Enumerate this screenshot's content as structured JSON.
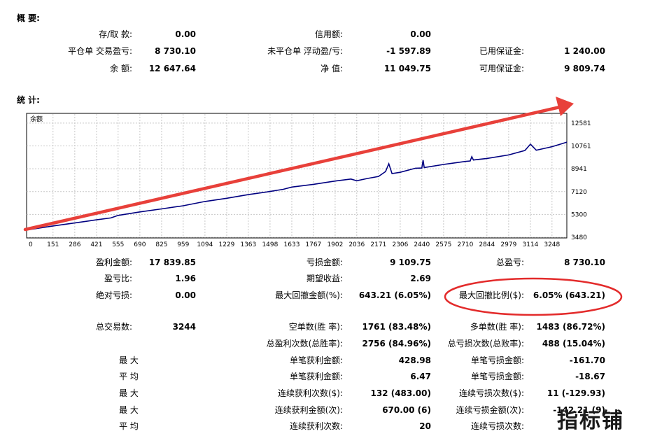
{
  "summary": {
    "title": "概 要:",
    "rows": [
      [
        {
          "label": "存/取 款:",
          "value": "0.00"
        },
        {
          "label": "信用额:",
          "value": "0.00"
        },
        {
          "label": "",
          "value": ""
        }
      ],
      [
        {
          "label": "平仓单 交易盈亏:",
          "value": "8 730.10"
        },
        {
          "label": "未平仓单 浮动盈/亏:",
          "value": "-1 597.89"
        },
        {
          "label": "已用保证金:",
          "value": "1 240.00"
        }
      ],
      [
        {
          "label": "余 额:",
          "value": "12 647.64"
        },
        {
          "label": "净 值:",
          "value": "11 049.75"
        },
        {
          "label": "可用保证金:",
          "value": "9 809.74"
        }
      ]
    ]
  },
  "stats": {
    "title": "统 计:",
    "rows": [
      [
        {
          "label": "盈利金额:",
          "value": "17 839.85"
        },
        {
          "label": "亏损金额:",
          "value": "9 109.75"
        },
        {
          "label": "总盈亏:",
          "value": "8 730.10"
        }
      ],
      [
        {
          "label": "盈亏比:",
          "value": "1.96"
        },
        {
          "label": "期望收益:",
          "value": "2.69"
        },
        {
          "label": "",
          "value": ""
        }
      ],
      [
        {
          "label": "绝对亏损:",
          "value": "0.00"
        },
        {
          "label": "最大回撤金额(%):",
          "value": "643.21 (6.05%)"
        },
        {
          "label": "最大回撤比例($):",
          "value": "6.05% (643.21)"
        }
      ],
      [
        {
          "label": "总交易数:",
          "value": "3244"
        },
        {
          "label": "空单数(胜 率):",
          "value": "1761 (83.48%)"
        },
        {
          "label": "多单数(胜 率):",
          "value": "1483 (86.72%)"
        }
      ],
      [
        {
          "label": "",
          "value": ""
        },
        {
          "label": "总盈利次数(总胜率):",
          "value": "2756 (84.96%)"
        },
        {
          "label": "总亏损次数(总败率):",
          "value": "488 (15.04%)"
        }
      ],
      [
        {
          "label": "最 大",
          "value": ""
        },
        {
          "label": "单笔获利金额:",
          "value": "428.98"
        },
        {
          "label": "单笔亏损金额:",
          "value": "-161.70"
        }
      ],
      [
        {
          "label": "平 均",
          "value": ""
        },
        {
          "label": "单笔获利金额:",
          "value": "6.47"
        },
        {
          "label": "单笔亏损金额:",
          "value": "-18.67"
        }
      ],
      [
        {
          "label": "最 大",
          "value": ""
        },
        {
          "label": "连续获利次数($):",
          "value": "132 (483.00)"
        },
        {
          "label": "连续亏损次数($):",
          "value": "11 (-129.93)"
        }
      ],
      [
        {
          "label": "最 大",
          "value": ""
        },
        {
          "label": "连续获利金额(次):",
          "value": "670.00 (6)"
        },
        {
          "label": "连续亏损金额(次):",
          "value": "-142.21 (9)"
        }
      ],
      [
        {
          "label": "平 均",
          "value": ""
        },
        {
          "label": "连续获利次数:",
          "value": "20"
        },
        {
          "label": "连续亏损次数:",
          "value": ""
        }
      ]
    ]
  },
  "chart_data": {
    "type": "line",
    "legend": "余额",
    "x_ticks": [
      0,
      151,
      286,
      421,
      555,
      690,
      825,
      959,
      1094,
      1229,
      1363,
      1498,
      1633,
      1767,
      1902,
      2036,
      2171,
      2306,
      2440,
      2575,
      2710,
      2844,
      2979,
      3114,
      3248
    ],
    "y_ticks": [
      12581,
      10761,
      8941,
      7120,
      5300,
      3480
    ],
    "xlim": [
      0,
      3340
    ],
    "ylim": [
      3480,
      13300
    ],
    "grid": true,
    "series": [
      {
        "x": [
          0,
          150,
          286,
          421,
          510,
          555,
          690,
          825,
          959,
          1094,
          1229,
          1363,
          1498,
          1580,
          1633,
          1767,
          1902,
          2000,
          2036,
          2100,
          2171,
          2215,
          2235,
          2255,
          2306,
          2400,
          2440,
          2448,
          2455,
          2575,
          2710,
          2740,
          2750,
          2760,
          2844,
          2979,
          3080,
          3114,
          3150,
          3248,
          3300,
          3340
        ],
        "y": [
          4080,
          4380,
          4620,
          4870,
          5020,
          5220,
          5500,
          5740,
          5990,
          6330,
          6590,
          6880,
          7130,
          7300,
          7480,
          7700,
          7960,
          8120,
          7980,
          8160,
          8330,
          8720,
          9340,
          8560,
          8660,
          8980,
          9000,
          9630,
          9040,
          9280,
          9520,
          9560,
          9900,
          9640,
          9760,
          10040,
          10400,
          10900,
          10420,
          10700,
          10900,
          11060
        ],
        "color": "#000080"
      }
    ],
    "annotation_arrow_color": "#e8403a",
    "annotation_ellipse_color": "#e32b2b"
  },
  "watermark": "指标铺"
}
